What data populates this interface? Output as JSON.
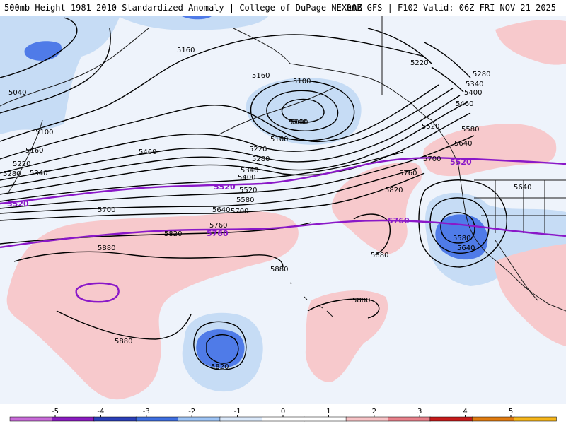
{
  "header": {
    "title_left": "500mb Height 1981-2010 Standardized Anomaly | College of DuPage NEXLAB",
    "title_right": "00Z GFS | F102 Valid: 06Z FRI NOV 21 2025"
  },
  "colors": {
    "map_bg": "#eef3fb",
    "coast": "#1a1a1a",
    "contour": "#000000",
    "highlight": "#8a18c8",
    "anom_neg1": "#c6dcf5",
    "anom_neg2": "#4f7be8",
    "anom_pos1": "#f7c9cc"
  },
  "contour_labels": [
    {
      "text": "5160"
    },
    {
      "text": "5220"
    },
    {
      "text": "5040"
    },
    {
      "text": "5160"
    },
    {
      "text": "5100"
    },
    {
      "text": "5040"
    },
    {
      "text": "5280"
    },
    {
      "text": "5340"
    },
    {
      "text": "5400"
    },
    {
      "text": "5460"
    },
    {
      "text": "5100"
    },
    {
      "text": "5160"
    },
    {
      "text": "5220"
    },
    {
      "text": "5280"
    },
    {
      "text": "5340"
    },
    {
      "text": "5460"
    },
    {
      "text": "5220"
    },
    {
      "text": "5280"
    },
    {
      "text": "5340"
    },
    {
      "text": "5400"
    },
    {
      "text": "5520"
    },
    {
      "text": "5580"
    },
    {
      "text": "5640"
    },
    {
      "text": "5700"
    },
    {
      "text": "5700"
    },
    {
      "text": "5760"
    },
    {
      "text": "5820"
    },
    {
      "text": "5880"
    },
    {
      "text": "5880"
    },
    {
      "text": "5880"
    },
    {
      "text": "5880"
    },
    {
      "text": "5820"
    },
    {
      "text": "5760"
    },
    {
      "text": "5820"
    },
    {
      "text": "5880"
    },
    {
      "text": "5520"
    },
    {
      "text": "5580"
    },
    {
      "text": "5640"
    },
    {
      "text": "5700"
    },
    {
      "text": "5640"
    },
    {
      "text": "5580"
    },
    {
      "text": "5640"
    },
    {
      "text": "5160"
    },
    {
      "text": "5040"
    }
  ],
  "highlight_labels": [
    {
      "text": "5520"
    },
    {
      "text": "5520"
    },
    {
      "text": "5520"
    },
    {
      "text": "5760"
    },
    {
      "text": "5760"
    }
  ],
  "legend": {
    "ticks": [
      "-5",
      "-4",
      "-3",
      "-2",
      "-1",
      "0",
      "1",
      "2",
      "3",
      "4",
      "5"
    ],
    "colors": [
      "#c86bd8",
      "#8a1bc0",
      "#2a3fb8",
      "#3f6fe0",
      "#9ec4f5",
      "#dbe9fa",
      "#ffffff",
      "#ffffff",
      "#f7c3c6",
      "#e8808a",
      "#c61a1a",
      "#e07b10",
      "#f5b51a"
    ]
  }
}
